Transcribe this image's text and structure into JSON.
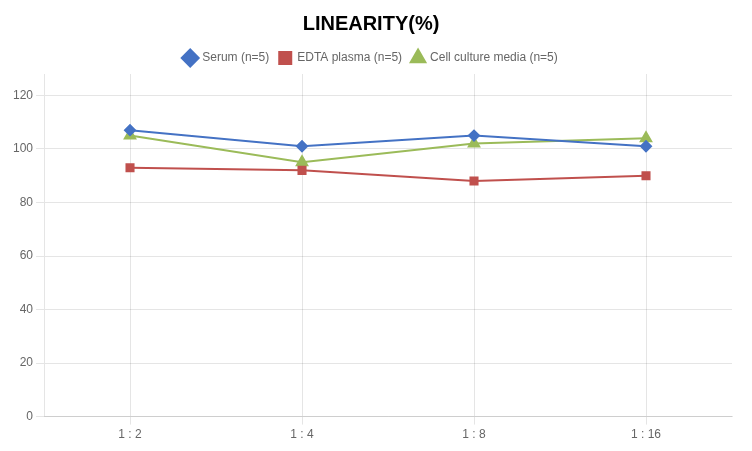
{
  "chart_data": {
    "type": "line",
    "title": "LINEARITY(%)",
    "categories": [
      "1 : 2",
      "1 : 4",
      "1 : 8",
      "1 : 16"
    ],
    "series": [
      {
        "name": "Serum (n=5)",
        "color": "#4472C4",
        "marker": "diamond",
        "values": [
          107,
          101,
          105,
          101
        ]
      },
      {
        "name": "EDTA plasma (n=5)",
        "color": "#C0504D",
        "marker": "square",
        "values": [
          93,
          92,
          88,
          90
        ]
      },
      {
        "name": "Cell culture media (n=5)",
        "color": "#9BBB59",
        "marker": "triangle",
        "values": [
          105,
          95,
          102,
          104
        ]
      }
    ],
    "ylim": [
      0,
      128
    ],
    "yticks": [
      0,
      20,
      40,
      60,
      80,
      100,
      120
    ],
    "grid": true,
    "legend": "top"
  }
}
